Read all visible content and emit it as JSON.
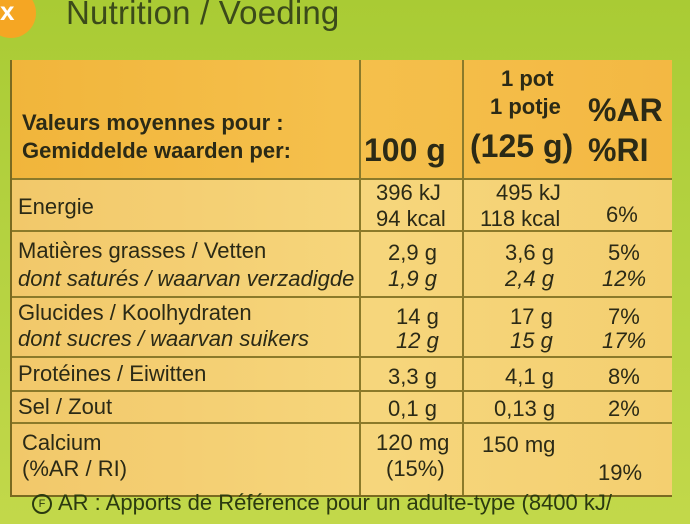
{
  "logo_mark": "x",
  "title": "Nutrition / Voeding",
  "header": {
    "label_line1": "Valeurs moyennes pour :",
    "label_line2": "Gemiddelde waarden per:",
    "col100": "100 g",
    "pot_line1": "1 pot",
    "pot_line2": "1 potje",
    "pot_line3": "(125 g)",
    "ar_line1": "%AR",
    "ar_line2": "%RI"
  },
  "rows": {
    "energie": {
      "label": "Energie",
      "v100a": "396 kJ",
      "v100b": "94 kcal",
      "vpota": "495 kJ",
      "vpotb": "118 kcal",
      "ar": "6%"
    },
    "fat": {
      "label": "Matières grasses / Vetten",
      "v100": "2,9 g",
      "vpot": "3,6 g",
      "ar": "5%"
    },
    "sat": {
      "label": "dont saturés / waarvan verzadigde",
      "v100": "1,9 g",
      "vpot": "2,4 g",
      "ar": "12%"
    },
    "carb": {
      "label": "Glucides / Koolhydraten",
      "v100": "14 g",
      "vpot": "17 g",
      "ar": "7%"
    },
    "sugar": {
      "label": "dont sucres / waarvan suikers",
      "v100": "12 g",
      "vpot": "15 g",
      "ar": "17%"
    },
    "protein": {
      "label": "Protéines / Eiwitten",
      "v100": "3,3 g",
      "vpot": "4,1 g",
      "ar": "8%"
    },
    "salt": {
      "label": "Sel / Zout",
      "v100": "0,1 g",
      "vpot": "0,13 g",
      "ar": "2%"
    },
    "calcium": {
      "label": "Calcium",
      "label2": "(%AR / RI)",
      "v100": "120 mg",
      "v100b": "(15%)",
      "vpot": "150 mg",
      "ar": "19%"
    }
  },
  "footer": {
    "icon": "F",
    "text": "AR : Apports de Référence pour un adulte-type (8400 kJ/"
  }
}
